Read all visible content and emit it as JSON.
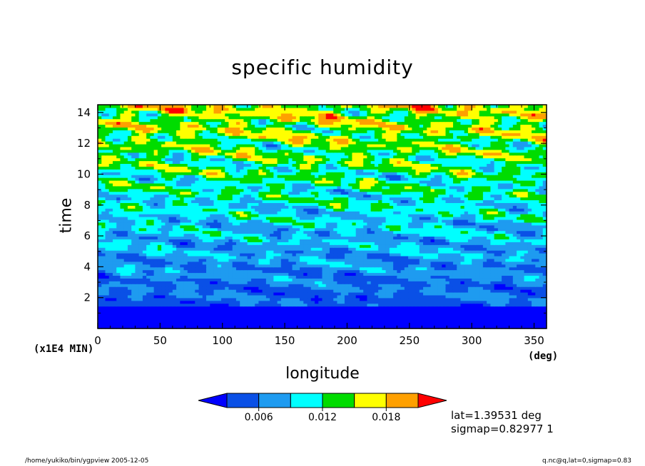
{
  "chart_data": {
    "type": "heatmap",
    "title": "specific humidity",
    "xlabel": "longitude",
    "ylabel": "time",
    "x_unit": "(deg)",
    "y_unit": "(x1E4 MIN)",
    "xlim": [
      0,
      360
    ],
    "ylim": [
      0,
      14.5
    ],
    "x_ticks": [
      "0",
      "50",
      "100",
      "150",
      "200",
      "250",
      "300",
      "350"
    ],
    "y_ticks": [
      "2",
      "4",
      "6",
      "8",
      "10",
      "12",
      "14"
    ],
    "colorbar": {
      "levels": [
        0.003,
        0.006,
        0.009,
        0.012,
        0.015,
        0.018,
        0.021
      ],
      "labels": [
        "0.006",
        "0.012",
        "0.018"
      ],
      "colors": [
        "#0000ff",
        "#0a50e6",
        "#1e9bf0",
        "#00ffff",
        "#00dc00",
        "#ffff00",
        "#ffa000",
        "#ff0000"
      ]
    },
    "description_values": {
      "low_band_value": "below 0.003 for time < 1.5",
      "trend": "humidity increases with time"
    }
  },
  "annotations": {
    "lat": "lat=1.39531 deg",
    "sigmap": "sigmap=0.82977 1"
  },
  "footer": {
    "left": "/home/yukiko/bin/ygpview  2005-12-05",
    "right": "q.nc@q,lat=0,sigmap=0.83"
  }
}
